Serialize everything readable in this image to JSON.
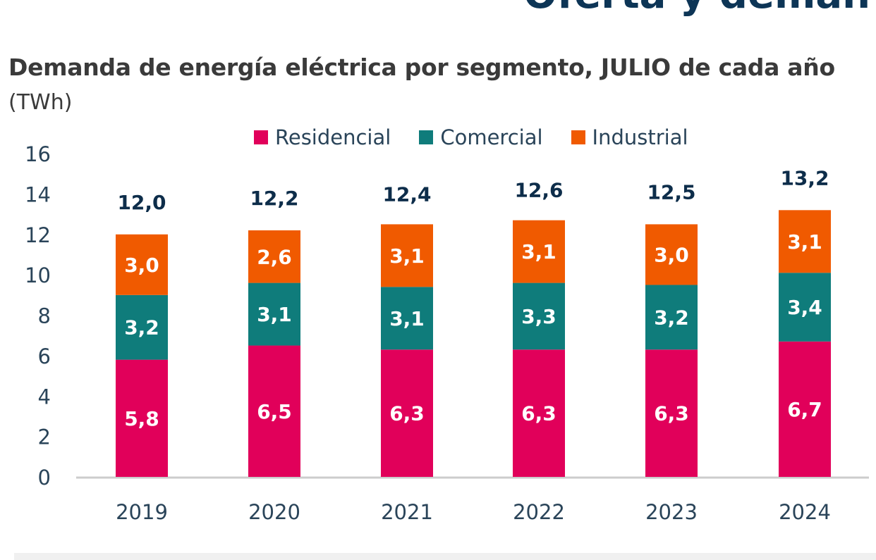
{
  "page": {
    "top_heading": "Oferta y deman"
  },
  "chart_data": {
    "type": "bar",
    "stacked": true,
    "title": "Demanda de energía eléctrica por segmento, JULIO de cada año",
    "unit_label": "(TWh)",
    "categories": [
      "2019",
      "2020",
      "2021",
      "2022",
      "2023",
      "2024"
    ],
    "series": [
      {
        "name": "Residencial",
        "color": "#e1005a",
        "values": [
          5.8,
          6.5,
          6.3,
          6.3,
          6.3,
          6.7
        ],
        "labels": [
          "5,8",
          "6,5",
          "6,3",
          "6,3",
          "6,3",
          "6,7"
        ]
      },
      {
        "name": "Comercial",
        "color": "#0f7c7b",
        "values": [
          3.2,
          3.1,
          3.1,
          3.3,
          3.2,
          3.4
        ],
        "labels": [
          "3,2",
          "3,1",
          "3,1",
          "3,3",
          "3,2",
          "3,4"
        ]
      },
      {
        "name": "Industrial",
        "color": "#f05a00",
        "values": [
          3.0,
          2.6,
          3.1,
          3.1,
          3.0,
          3.1
        ],
        "labels": [
          "3,0",
          "2,6",
          "3,1",
          "3,1",
          "3,0",
          "3,1"
        ]
      }
    ],
    "totals": [
      12.0,
      12.2,
      12.4,
      12.6,
      12.5,
      13.2
    ],
    "total_labels": [
      "12,0",
      "12,2",
      "12,4",
      "12,6",
      "12,5",
      "13,2"
    ],
    "ylim": [
      0,
      16
    ],
    "yticks": [
      0,
      2,
      4,
      6,
      8,
      10,
      12,
      14,
      16
    ],
    "grid": false,
    "legend_position": "top",
    "colors": {
      "axis_text": "#2a4459",
      "total_text": "#0d2d4a",
      "axis_line": "#cccccc"
    }
  }
}
